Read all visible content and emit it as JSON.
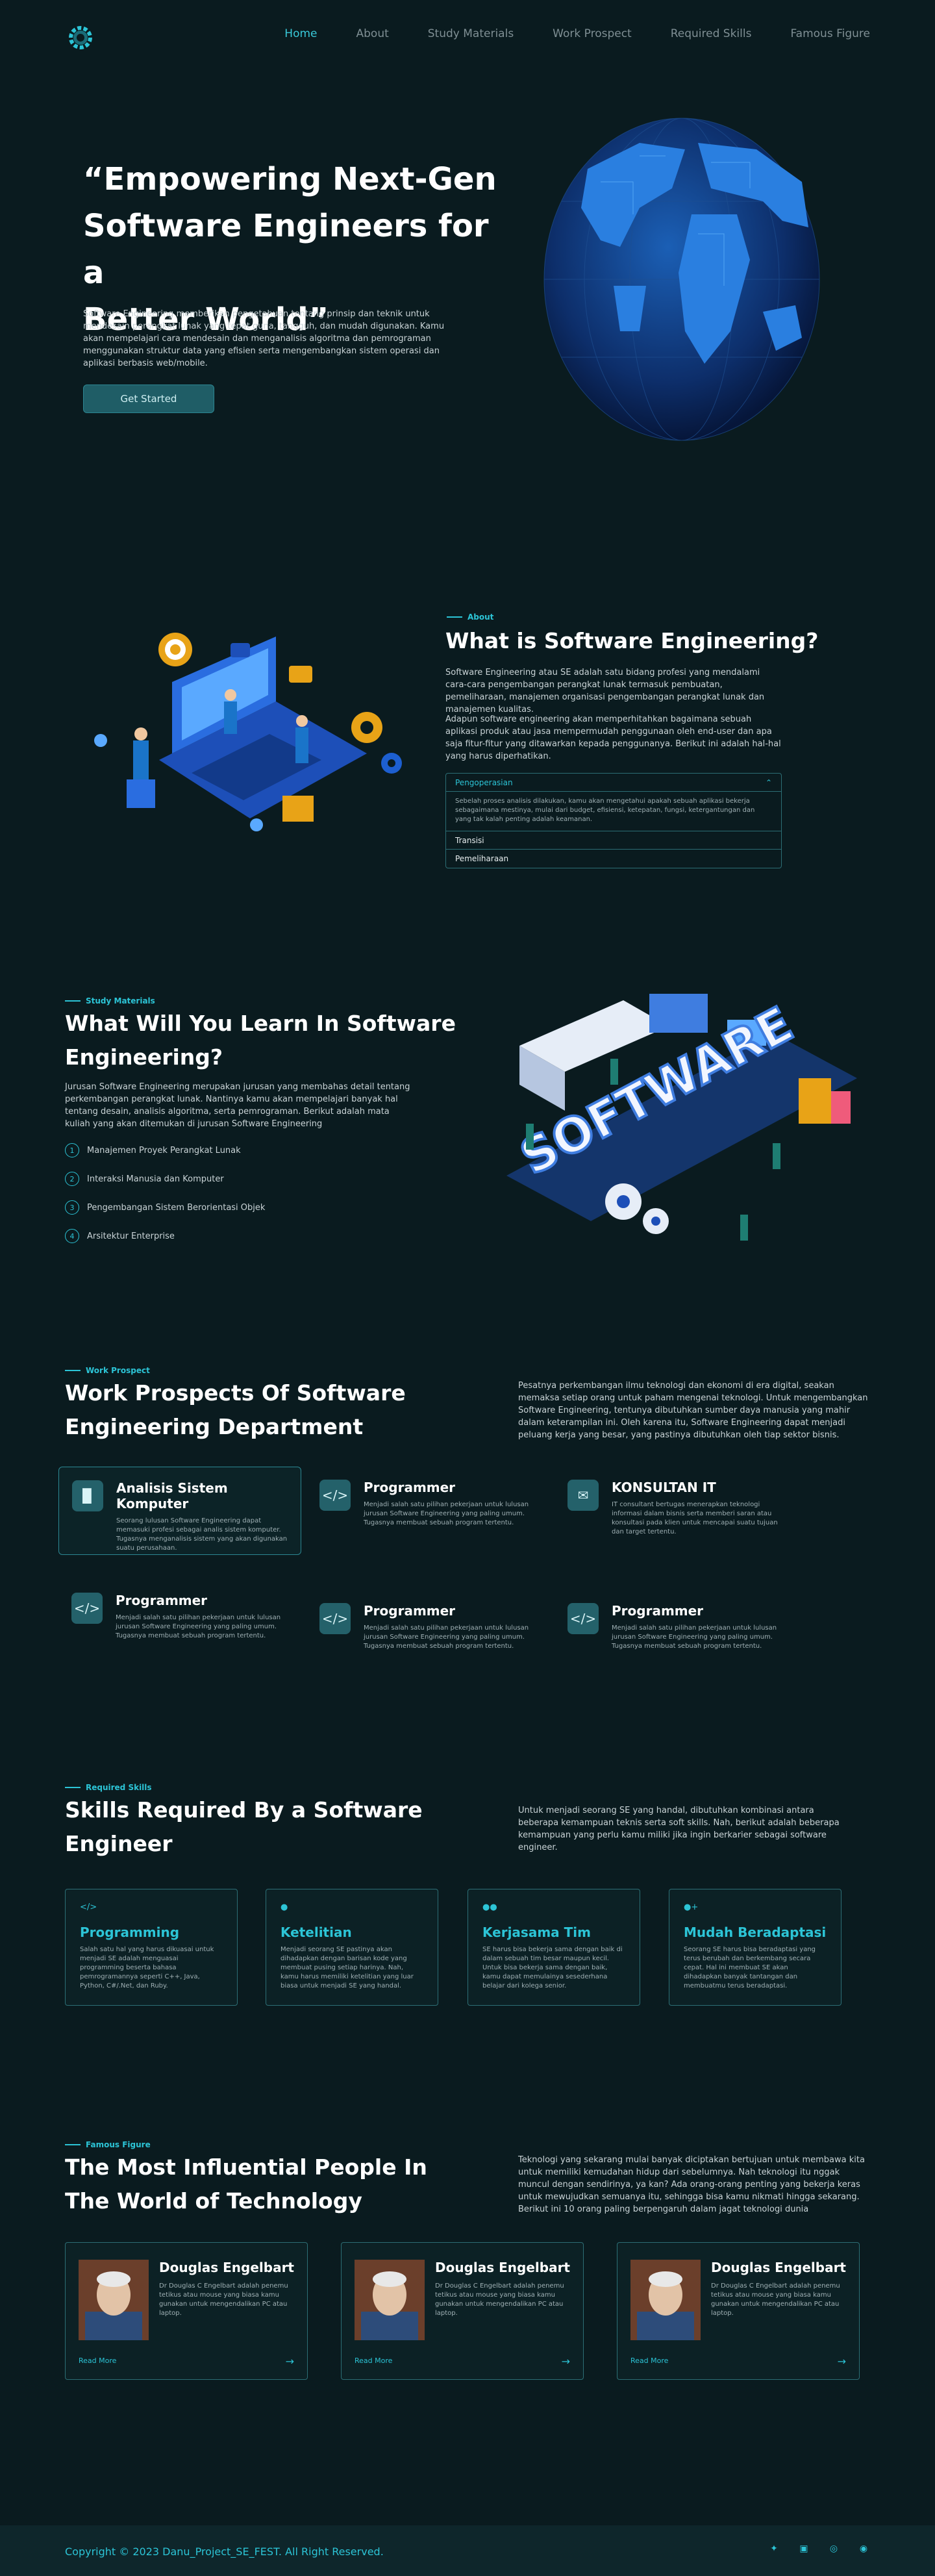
{
  "nav": {
    "items": [
      {
        "label": "Home",
        "active": true
      },
      {
        "label": "About",
        "active": false
      },
      {
        "label": "Study Materials",
        "active": false
      },
      {
        "label": "Work Prospect",
        "active": false
      },
      {
        "label": "Required Skills",
        "active": false
      },
      {
        "label": "Famous Figure",
        "active": false
      }
    ]
  },
  "hero": {
    "title_line1": "“Empowering Next-Gen",
    "title_line2": "Software Engineers for a",
    "title_line3": "Better World”",
    "text": "Software Engineering memberikan pengetahuan tentang prinsip dan teknik untuk mendesain perangkat lunak yang tepat guna, tangguh, dan mudah digunakan. Kamu akan mempelajari cara mendesain dan menganalisis algoritma dan pemrograman menggunakan struktur data yang efisien serta mengembangkan sistem operasi dan aplikasi berbasis web/mobile.",
    "cta": "Get Started"
  },
  "about": {
    "eyebrow": "About",
    "title": "What is Software Engineering?",
    "para1": "Software Engineering atau SE adalah satu bidang profesi yang mendalami cara-cara pengembangan perangkat lunak termasuk pembuatan, pemeliharaan, manajemen organisasi pengembangan perangkat lunak dan manajemen kualitas.",
    "para2": "Adapun software engineering akan memperhitahkan bagaimana sebuah aplikasi produk atau jasa mempermudah penggunaan oleh end-user dan apa saja fitur-fitur yang ditawarkan kepada penggunanya. Berikut ini adalah hal-hal yang harus diperhatikan.",
    "accordion": [
      {
        "label": "Pengoperasian",
        "body": "Sebelah proses analisis dilakukan, kamu akan mengetahui apakah sebuah aplikasi bekerja sebagaimana mestinya, mulai dari budget, efisiensi, ketepatan, fungsi, ketergantungan dan yang tak kalah penting adalah keamanan.",
        "open": true
      },
      {
        "label": "Transisi",
        "open": false
      },
      {
        "label": "Pemeliharaan",
        "open": false
      }
    ]
  },
  "study": {
    "eyebrow": "Study Materials",
    "title_line1": "What Will You Learn In Software",
    "title_line2": "Engineering?",
    "text": "Jurusan Software Engineering merupakan jurusan yang membahas detail tentang perkembangan perangkat lunak. Nantinya kamu akan mempelajari banyak hal tentang desain, analisis algoritma, serta pemrograman. Berikut adalah mata kuliah yang akan ditemukan di jurusan Software Engineering",
    "items": [
      {
        "num": "1",
        "label": "Manajemen Proyek Perangkat Lunak"
      },
      {
        "num": "2",
        "label": "Interaksi Manusia dan Komputer"
      },
      {
        "num": "3",
        "label": "Pengembangan Sistem Berorientasi Objek"
      },
      {
        "num": "4",
        "label": "Arsitektur Enterprise"
      }
    ]
  },
  "prospect": {
    "eyebrow": "Work Prospect",
    "title_line1": "Work Prospects Of Software",
    "title_line2": "Engineering Department",
    "text": "Pesatnya perkembangan ilmu teknologi dan ekonomi di era digital, seakan memaksa setiap orang untuk paham mengenai teknologi. Untuk mengembangkan Software Engineering, tentunya dibutuhkan sumber daya manusia yang mahir dalam keterampilan ini. Oleh karena itu, Software Engineering dapat menjadi peluang kerja yang besar, yang pastinya dibutuhkan oleh tiap sektor bisnis.",
    "cards": [
      {
        "title": "Analisis Sistem Komputer",
        "icon": "bar-chart-icon",
        "text": "Seorang lulusan Software Engineering dapat memasuki profesi sebagai analis sistem komputer. Tugasnya menganalisis sistem yang akan digunakan suatu perusahaan."
      },
      {
        "title": "Programmer",
        "icon": "code-icon",
        "text": "Menjadi salah satu pilihan pekerjaan untuk lulusan jurusan Software Engineering yang paling umum. Tugasnya membuat sebuah program tertentu."
      },
      {
        "title": "KONSULTAN IT",
        "icon": "chat-icon",
        "text": "IT consultant bertugas menerapkan teknologi informasi dalam bisnis serta memberi saran atau konsultasi pada klien untuk mencapai suatu tujuan dan target tertentu."
      },
      {
        "title": "Programmer",
        "icon": "code-icon",
        "text": "Menjadi salah satu pilihan pekerjaan untuk lulusan jurusan Software Engineering yang paling umum. Tugasnya membuat sebuah program tertentu."
      },
      {
        "title": "Programmer",
        "icon": "code-icon",
        "text": "Menjadi salah satu pilihan pekerjaan untuk lulusan jurusan Software Engineering yang paling umum. Tugasnya membuat sebuah program tertentu."
      },
      {
        "title": "Programmer",
        "icon": "code-icon",
        "text": "Menjadi salah satu pilihan pekerjaan untuk lulusan jurusan Software Engineering yang paling umum. Tugasnya membuat sebuah program tertentu."
      }
    ]
  },
  "skills": {
    "eyebrow": "Required Skills",
    "title_line1": "Skills Required By a Software",
    "title_line2": "Engineer",
    "text": "Untuk menjadi seorang SE yang handal, dibutuhkan kombinasi antara beberapa kemampuan teknis serta soft skills. Nah, berikut adalah beberapa kemampuan yang perlu kamu miliki jika ingin berkarier sebagai software engineer.",
    "cards": [
      {
        "title": "Programming",
        "icon": "code-icon",
        "text": "Salah satu hal yang harus dikuasai untuk menjadi SE adalah menguasai programming beserta bahasa pemrogramannya seperti C++, Java, Python, C#/.Net, dan Ruby."
      },
      {
        "title": "Ketelitian",
        "icon": "user-search-icon",
        "text": "Menjadi seorang SE pastinya akan dihadapkan dengan barisan kode yang membuat pusing setiap harinya. Nah, kamu harus memiliki ketelitian yang luar biasa untuk menjadi SE yang handal."
      },
      {
        "title": "Kerjasama Tim",
        "icon": "team-icon",
        "text": "SE harus bisa bekerja sama dengan baik di dalam sebuah tim besar maupun kecil. Untuk bisa bekerja sama dengan baik, kamu dapat memulainya sesederhana belajar dari kolega senior."
      },
      {
        "title": "Mudah Beradaptasi",
        "icon": "user-plus-icon",
        "text": "Seorang SE harus bisa beradaptasi yang terus berubah dan berkembang secara cepat. Hal ini membuat SE akan dihadapkan banyak tantangan dan membuatmu terus beradaptasi."
      }
    ]
  },
  "famous": {
    "eyebrow": "Famous Figure",
    "title_line1": "The Most Influential People In",
    "title_line2": "The World of Technology",
    "text": "Teknologi yang sekarang mulai banyak diciptakan bertujuan untuk membawa kita untuk memiliki kemudahan hidup dari sebelumnya. Nah teknologi itu nggak muncul dengan sendirinya, ya kan? Ada orang-orang penting yang bekerja keras untuk mewujudkan semuanya itu, sehingga bisa kamu nikmati hingga sekarang. Berikut ini 10 orang paling berpengaruh dalam jagat teknologi dunia",
    "cards": [
      {
        "name": "Douglas Engelbart",
        "text": "Dr Douglas C Engelbart adalah penemu tetikus atau mouse yang biasa kamu gunakan untuk mengendalikan PC atau laptop.",
        "more": "Read More"
      },
      {
        "name": "Douglas Engelbart",
        "text": "Dr Douglas C Engelbart adalah penemu tetikus atau mouse yang biasa kamu gunakan untuk mengendalikan PC atau laptop.",
        "more": "Read More"
      },
      {
        "name": "Douglas Engelbart",
        "text": "Dr Douglas C Engelbart adalah penemu tetikus atau mouse yang biasa kamu gunakan untuk mengendalikan PC atau laptop.",
        "more": "Read More"
      }
    ]
  },
  "footer": {
    "copyright": "Copyright © 2023 Danu_Project_SE_FEST. All Right Reserved.",
    "socials": [
      "twitter-icon",
      "linkedin-icon",
      "instagram-icon",
      "github-icon"
    ]
  },
  "colors": {
    "bg": "#0a1b1f",
    "accent": "#2cc4d6",
    "card": "#24616a"
  }
}
